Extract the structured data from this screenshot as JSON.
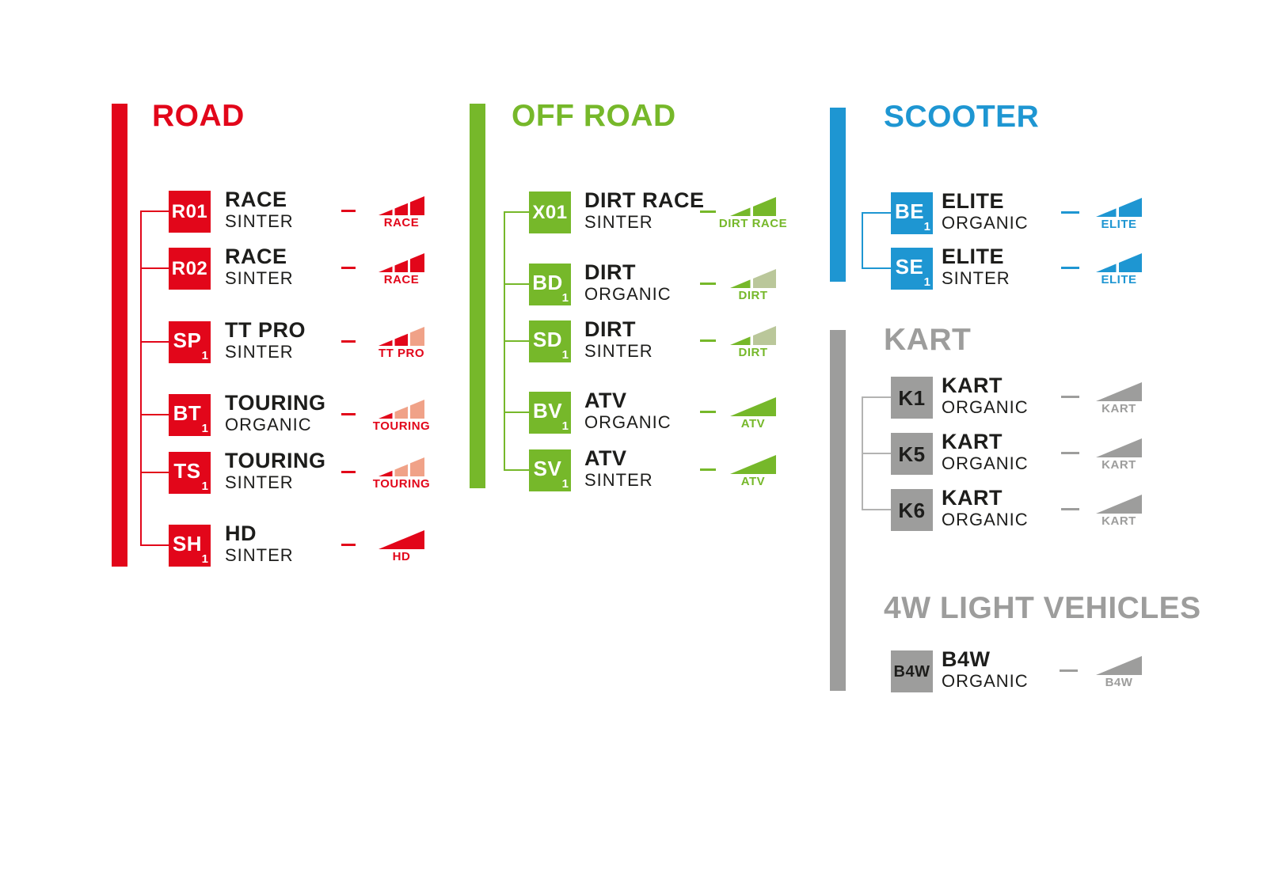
{
  "page": {
    "background": "#ffffff",
    "text_color": "#1d1d1b"
  },
  "sections": [
    {
      "id": "road",
      "title": "ROAD",
      "color": "#e2061a",
      "connector_color": "#e2061a",
      "badge_bg": "#e2061a",
      "badge_fg": "#ffffff",
      "items": [
        {
          "code": "R01",
          "code_sub": "",
          "name": "RACE",
          "material": "SINTER",
          "icon": {
            "label": "RACE",
            "segments": [
              "#e2061a",
              "#e2061a",
              "#e2061a"
            ]
          }
        },
        {
          "code": "R02",
          "code_sub": "",
          "name": "RACE",
          "material": "SINTER",
          "icon": {
            "label": "RACE",
            "segments": [
              "#e2061a",
              "#e2061a",
              "#e2061a"
            ]
          }
        },
        {
          "code": "SP",
          "code_sub": "1",
          "name": "TT PRO",
          "material": "SINTER",
          "icon": {
            "label": "TT PRO",
            "segments": [
              "#e2061a",
              "#e2061a",
              "#f0a288"
            ]
          }
        },
        {
          "code": "BT",
          "code_sub": "1",
          "name": "TOURING",
          "material": "ORGANIC",
          "icon": {
            "label": "TOURING",
            "segments": [
              "#e2061a",
              "#f0a288",
              "#f0a288"
            ]
          }
        },
        {
          "code": "TS",
          "code_sub": "1",
          "name": "TOURING",
          "material": "SINTER",
          "icon": {
            "label": "TOURING",
            "segments": [
              "#e2061a",
              "#f0a288",
              "#f0a288"
            ]
          }
        },
        {
          "code": "SH",
          "code_sub": "1",
          "name": "HD",
          "material": "SINTER",
          "icon": {
            "label": "HD",
            "segments": [
              "#e2061a"
            ]
          }
        }
      ]
    },
    {
      "id": "offroad",
      "title": "OFF ROAD",
      "color": "#76b82a",
      "connector_color": "#76b82a",
      "badge_bg": "#76b82a",
      "badge_fg": "#ffffff",
      "items": [
        {
          "code": "X01",
          "code_sub": "",
          "name": "DIRT RACE",
          "material": "SINTER",
          "icon": {
            "label": "DIRT RACE",
            "segments": [
              "#76b82a",
              "#76b82a"
            ]
          }
        },
        {
          "code": "BD",
          "code_sub": "1",
          "name": "DIRT",
          "material": "ORGANIC",
          "icon": {
            "label": "DIRT",
            "segments": [
              "#76b82a",
              "#bac79a"
            ]
          }
        },
        {
          "code": "SD",
          "code_sub": "1",
          "name": "DIRT",
          "material": "SINTER",
          "icon": {
            "label": "DIRT",
            "segments": [
              "#76b82a",
              "#bac79a"
            ]
          }
        },
        {
          "code": "BV",
          "code_sub": "1",
          "name": "ATV",
          "material": "ORGANIC",
          "icon": {
            "label": "ATV",
            "segments": [
              "#76b82a"
            ]
          }
        },
        {
          "code": "SV",
          "code_sub": "1",
          "name": "ATV",
          "material": "SINTER",
          "icon": {
            "label": "ATV",
            "segments": [
              "#76b82a"
            ]
          }
        }
      ]
    },
    {
      "id": "scooter",
      "title": "SCOOTER",
      "color": "#1e96d2",
      "connector_color": "#1e96d2",
      "badge_bg": "#1e96d2",
      "badge_fg": "#ffffff",
      "items": [
        {
          "code": "BE",
          "code_sub": "1",
          "name": "ELITE",
          "material": "ORGANIC",
          "icon": {
            "label": "ELITE",
            "segments": [
              "#1e96d2",
              "#1e96d2"
            ]
          }
        },
        {
          "code": "SE",
          "code_sub": "1",
          "name": "ELITE",
          "material": "SINTER",
          "icon": {
            "label": "ELITE",
            "segments": [
              "#1e96d2",
              "#1e96d2"
            ]
          }
        }
      ]
    },
    {
      "id": "kart",
      "title": "KART",
      "color": "#9d9d9c",
      "connector_color": "#b3b3b2",
      "badge_bg": "#9d9d9c",
      "badge_fg": "#1d1d1b",
      "items": [
        {
          "code": "K1",
          "code_sub": "",
          "name": "KART",
          "material": "ORGANIC",
          "icon": {
            "label": "KART",
            "segments": [
              "#9d9d9c"
            ]
          }
        },
        {
          "code": "K5",
          "code_sub": "",
          "name": "KART",
          "material": "ORGANIC",
          "icon": {
            "label": "KART",
            "segments": [
              "#9d9d9c"
            ]
          }
        },
        {
          "code": "K6",
          "code_sub": "",
          "name": "KART",
          "material": "ORGANIC",
          "icon": {
            "label": "KART",
            "segments": [
              "#9d9d9c"
            ]
          }
        }
      ]
    },
    {
      "id": "lightvehicles",
      "title": "4W LIGHT VEHICLES",
      "color": "#9d9d9c",
      "connector_color": "#b3b3b2",
      "badge_bg": "#9d9d9c",
      "badge_fg": "#1d1d1b",
      "items": [
        {
          "code": "B4W",
          "code_sub": "",
          "name": "B4W",
          "material": "ORGANIC",
          "icon": {
            "label": "B4W",
            "segments": [
              "#9d9d9c"
            ]
          }
        }
      ]
    }
  ]
}
